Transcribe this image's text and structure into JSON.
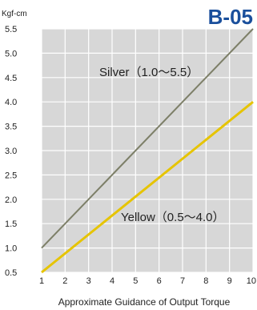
{
  "chart_data": {
    "type": "line",
    "title": "B-05",
    "y_unit": "Kgf-cm",
    "xlabel": "Approximate Guidance of Output Torque",
    "ylabel": "",
    "xlim": [
      1,
      10
    ],
    "ylim": [
      0.5,
      5.5
    ],
    "x_ticks": [
      "1",
      "2",
      "3",
      "4",
      "5",
      "6",
      "7",
      "8",
      "9",
      "10"
    ],
    "y_ticks": [
      "0.5",
      "1.0",
      "1.5",
      "2.0",
      "2.5",
      "3.0",
      "3.5",
      "4.0",
      "4.5",
      "5.0",
      "5.5"
    ],
    "grid": true,
    "series": [
      {
        "label": "Silver（1.0～5.5）",
        "color": "#7d7f68",
        "x": [
          1,
          10
        ],
        "y": [
          1.0,
          5.5
        ]
      },
      {
        "label": "Yellow（0.5～4.0）",
        "color": "#e6c400",
        "x": [
          1,
          10
        ],
        "y": [
          0.5,
          4.0
        ]
      }
    ],
    "colors": {
      "title": "#1a4f9c",
      "plot_bg": "#d7d7d7",
      "grid": "#ffffff"
    }
  }
}
